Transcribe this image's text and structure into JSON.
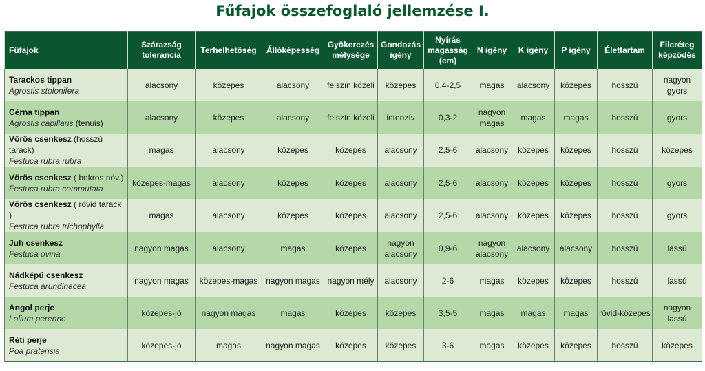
{
  "title": "Fűfajok összefoglaló jellemzése I.",
  "colors": {
    "header_bg": "#0b5631",
    "title": "#0b5631",
    "row_light": "#dcead4",
    "row_dark": "#b5d8a9"
  },
  "table": {
    "headers": [
      "Fűfajok",
      "Szárazság tolerancia",
      "Terhelhetőség",
      "Állóképesség",
      "Gyökerezés mélysége",
      "Gondozás igény",
      "Nyírás magasság (cm)",
      "N igény",
      "K igény",
      "P igény",
      "Élettartam",
      "Filcréteg képződés"
    ],
    "rows": [
      {
        "common": "Tarackos tippan",
        "note": "",
        "latin": "Agrostis stolonifera",
        "latin_note": "",
        "cells": [
          "alacsony",
          "közepes",
          "alacsony",
          "felszín közeli",
          "közepes",
          "0,4-2,5",
          "magas",
          "alacsony",
          "közepes",
          "hosszú",
          "nagyon gyors"
        ]
      },
      {
        "common": "Cérna tippan",
        "note": "",
        "latin": "Agrostis capillaris",
        "latin_note": " (tenuis)",
        "cells": [
          "alacsony",
          "közepes",
          "alacsony",
          "felszín közeli",
          "intenzív",
          "0,3-2",
          "nagyon magas",
          "magas",
          "magas",
          "hosszú",
          "gyors"
        ]
      },
      {
        "common": "Vörös csenkesz",
        "note": " (hosszú tarack)",
        "latin": "Festuca rubra rubra",
        "latin_note": "",
        "cells": [
          "magas",
          "alacsony",
          "közepes",
          "közepes",
          "alacsony",
          "2,5-6",
          "alacsony",
          "közepes",
          "közepes",
          "hosszú",
          "közepes"
        ]
      },
      {
        "common": "Vörös csenkesz",
        "note": " ( bokros növ.)",
        "latin": "Festuca rubra commutata",
        "latin_note": "",
        "cells": [
          "közepes-magas",
          "alacsony",
          "közepes",
          "közepes",
          "alacsony",
          "2,5-6",
          "alacsony",
          "közepes",
          "közepes",
          "hosszú",
          "gyors"
        ]
      },
      {
        "common": "Vörös csenkesz",
        "note": " ( rövid tarack )",
        "latin": "Festuca rubra trichophylla",
        "latin_note": "",
        "cells": [
          "magas",
          "alacsony",
          "közepes",
          "közepes",
          "alacsony",
          "2,5-6",
          "alacsony",
          "közepes",
          "közepes",
          "hosszú",
          "gyors"
        ]
      },
      {
        "common": "Juh csenkesz",
        "note": "",
        "latin": "Festuca ovina",
        "latin_note": "",
        "cells": [
          "nagyon magas",
          "alacsony",
          "magas",
          "közepes",
          "nagyon alacsony",
          "0,9-6",
          "nagyon alacsony",
          "alacsony",
          "alacsony",
          "hosszú",
          "lassú"
        ]
      },
      {
        "common": "Nádképű csenkesz",
        "note": "",
        "latin": "Festuca arundinacea",
        "latin_note": "",
        "cells": [
          "nagyon magas",
          "közepes-magas",
          "nagyon magas",
          "nagyon mély",
          "alacsony",
          "2-6",
          "magas",
          "közepes",
          "közepes",
          "hosszú",
          "lassú"
        ]
      },
      {
        "common": "Angol perje",
        "note": "",
        "latin": "Lolium perenne",
        "latin_note": "",
        "cells": [
          "közepes-jó",
          "nagyon magas",
          "magas",
          "közepes",
          "közepes",
          "3,5-5",
          "magas",
          "magas",
          "magas",
          "rövid-közepes",
          "nagyon lassú"
        ]
      },
      {
        "common": "Réti perje",
        "note": "",
        "latin": "Poa pratensis",
        "latin_note": "",
        "cells": [
          "közepes-jó",
          "magas",
          "nagyon magas",
          "közepes",
          "közepes",
          "3-6",
          "magas",
          "közepes",
          "közepes",
          "hosszú",
          "közepes"
        ]
      }
    ]
  }
}
